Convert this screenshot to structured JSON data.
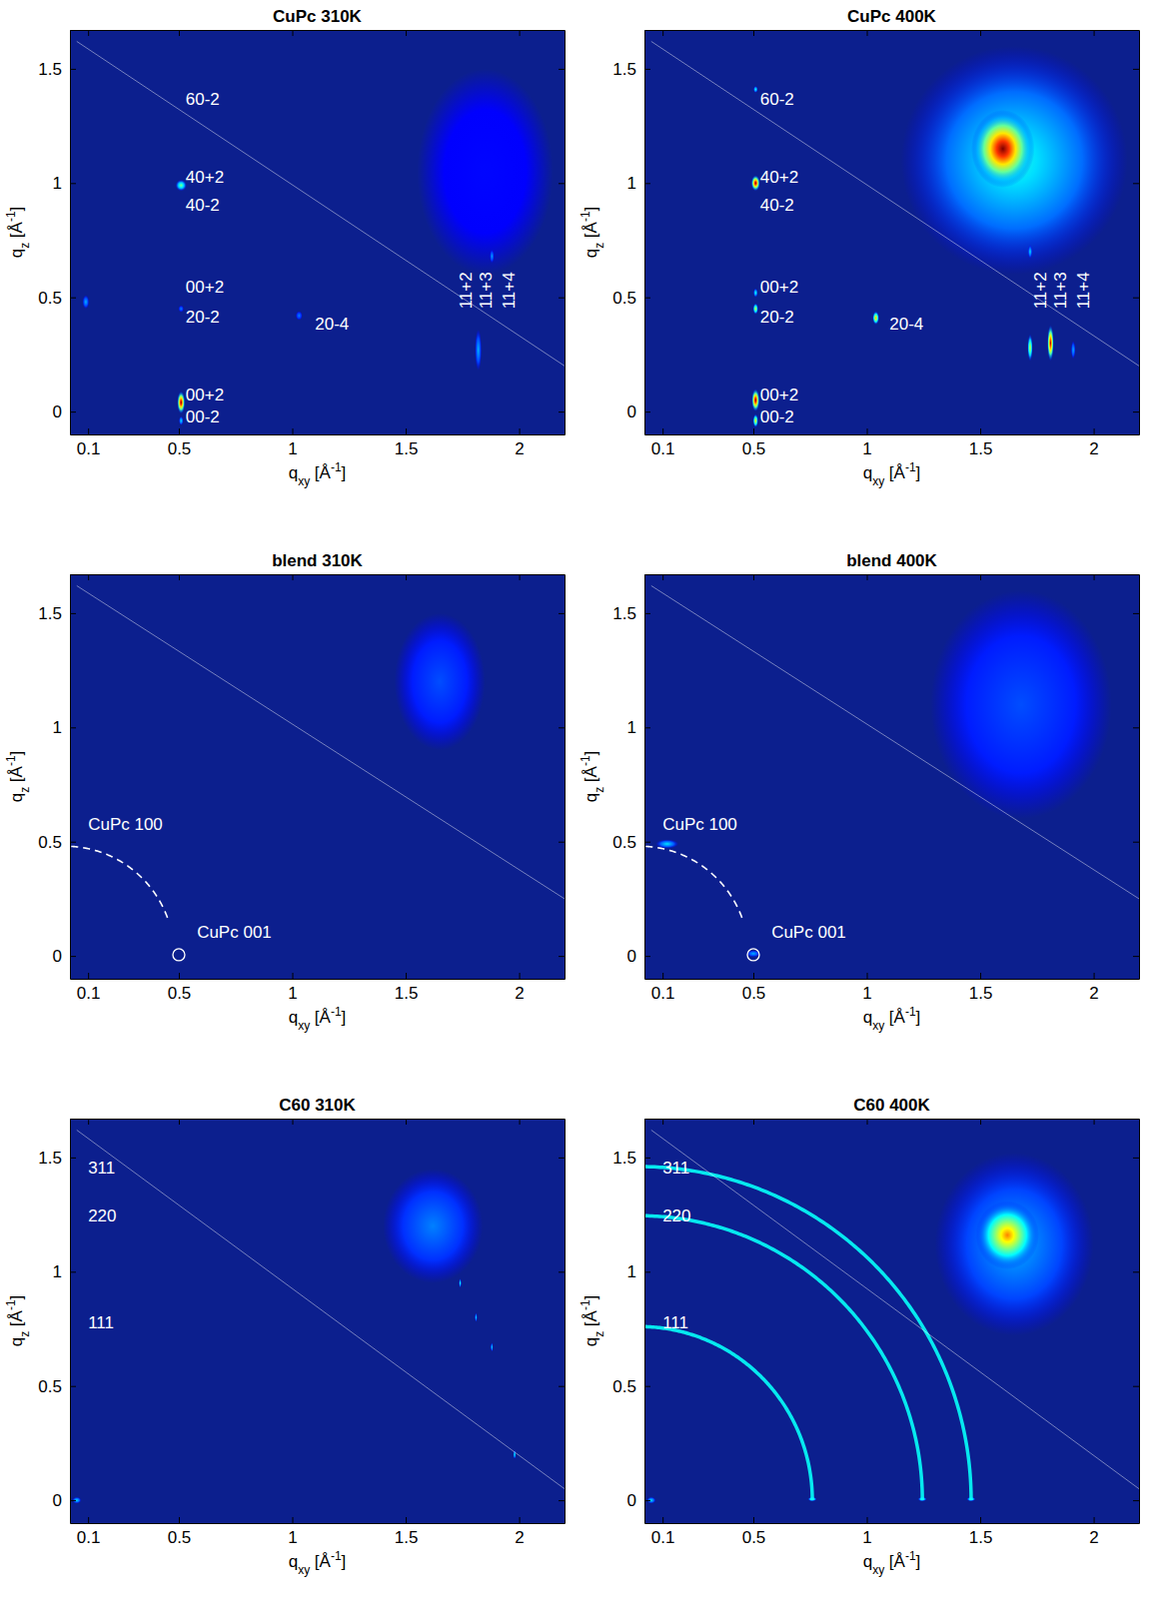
{
  "chart_data": [
    {
      "type": "scattering_map",
      "title": "CuPc 310K",
      "xlabel": [
        "q",
        "xy",
        " [Å",
        "-1",
        "]"
      ],
      "ylabel": [
        "q",
        "z",
        " [Å",
        "-1",
        "]"
      ],
      "xlim": [
        0.02,
        2.2
      ],
      "ylim": [
        -0.1,
        1.67
      ],
      "xticks": [
        0.1,
        0.5,
        1,
        1.5,
        2
      ],
      "yticks": [
        0,
        0.5,
        1,
        1.5
      ],
      "spots": {
        "x": [
          1.85,
          0.51,
          0.51,
          0.51,
          0.51,
          0.09,
          1.03,
          1.82,
          1.88
        ],
        "y": [
          1.05,
          0.04,
          -0.04,
          0.99,
          0.45,
          0.48,
          0.42,
          0.27,
          0.68
        ],
        "intensity": [
          0.13,
          1.0,
          0.35,
          0.5,
          0.25,
          0.3,
          0.25,
          0.3,
          0.28
        ],
        "sx": [
          0.3,
          0.018,
          0.01,
          0.025,
          0.012,
          0.015,
          0.015,
          0.015,
          0.01
        ],
        "sy": [
          0.45,
          0.05,
          0.02,
          0.025,
          0.015,
          0.03,
          0.02,
          0.09,
          0.03
        ]
      },
      "guide_line": {
        "x": [
          0.05,
          2.2
        ],
        "y": [
          1.62,
          0.2
        ]
      },
      "annotations": {
        "text": [
          "60-2",
          "40+2",
          "40-2",
          "00+2",
          "20-2",
          "20-4",
          "00+2",
          "00-2"
        ],
        "x": [
          0.53,
          0.53,
          0.53,
          0.53,
          0.53,
          1.1,
          0.53,
          0.53
        ],
        "y": [
          1.36,
          1.02,
          0.9,
          0.54,
          0.41,
          0.38,
          0.07,
          -0.03
        ]
      },
      "vertical_annotations": {
        "text": [
          "11+2",
          "11+3",
          "11+4"
        ],
        "x": [
          1.77,
          1.86,
          1.96
        ],
        "y": [
          0.53,
          0.53,
          0.53
        ]
      }
    },
    {
      "type": "scattering_map",
      "title": "CuPc 400K",
      "xlabel": [
        "q",
        "xy",
        " [Å",
        "-1",
        "]"
      ],
      "ylabel": [
        "q",
        "z",
        " [Å",
        "-1",
        "]"
      ],
      "xlim": [
        0.02,
        2.2
      ],
      "ylim": [
        -0.1,
        1.67
      ],
      "xticks": [
        0.1,
        0.5,
        1,
        1.5,
        2
      ],
      "yticks": [
        0,
        0.5,
        1,
        1.5
      ],
      "spots": {
        "x": [
          1.65,
          1.6,
          0.51,
          0.51,
          0.51,
          0.51,
          0.51,
          0.51,
          1.04,
          1.72,
          1.81,
          1.91,
          1.72
        ],
        "y": [
          1.1,
          1.15,
          0.05,
          -0.04,
          1.0,
          1.41,
          0.52,
          0.45,
          0.41,
          0.28,
          0.3,
          0.27,
          0.7
        ],
        "intensity": [
          0.4,
          1.0,
          1.0,
          0.65,
          1.0,
          0.4,
          0.4,
          0.6,
          0.7,
          0.6,
          0.95,
          0.3,
          0.35
        ],
        "sx": [
          0.5,
          0.14,
          0.018,
          0.012,
          0.02,
          0.01,
          0.01,
          0.012,
          0.015,
          0.012,
          0.015,
          0.01,
          0.01
        ],
        "sy": [
          0.5,
          0.17,
          0.05,
          0.03,
          0.035,
          0.015,
          0.02,
          0.025,
          0.03,
          0.06,
          0.08,
          0.04,
          0.03
        ]
      },
      "guide_line": {
        "x": [
          0.05,
          2.2
        ],
        "y": [
          1.62,
          0.2
        ]
      },
      "annotations": {
        "text": [
          "60-2",
          "40+2",
          "40-2",
          "00+2",
          "20-2",
          "20-4",
          "00+2",
          "00-2"
        ],
        "x": [
          0.53,
          0.53,
          0.53,
          0.53,
          0.53,
          1.1,
          0.53,
          0.53
        ],
        "y": [
          1.36,
          1.02,
          0.9,
          0.54,
          0.41,
          0.38,
          0.07,
          -0.03
        ]
      },
      "vertical_annotations": {
        "text": [
          "11+2",
          "11+3",
          "11+4"
        ],
        "x": [
          1.77,
          1.86,
          1.96
        ],
        "y": [
          0.53,
          0.53,
          0.53
        ]
      }
    },
    {
      "type": "scattering_map",
      "title": "blend 310K",
      "xlabel": [
        "q",
        "xy",
        " [Å",
        "-1",
        "]"
      ],
      "ylabel": [
        "q",
        "z",
        " [Å",
        "-1",
        "]"
      ],
      "xlim": [
        0.02,
        2.2
      ],
      "ylim": [
        -0.1,
        1.67
      ],
      "xticks": [
        0.1,
        0.5,
        1,
        1.5,
        2
      ],
      "yticks": [
        0,
        0.5,
        1,
        1.5
      ],
      "spots": {
        "x": [
          1.65
        ],
        "y": [
          1.2
        ],
        "intensity": [
          0.2
        ],
        "sx": [
          0.2
        ],
        "sy": [
          0.3
        ]
      },
      "guide_line": {
        "x": [
          0.05,
          2.2
        ],
        "y": [
          1.62,
          0.25
        ]
      },
      "arcs": {
        "radius": [
          0.48
        ],
        "x_end": [
          0.45
        ],
        "line_style": "dashed"
      },
      "markers": {
        "x": [
          0.5
        ],
        "y": [
          0.005
        ],
        "marker": "circle"
      },
      "annotations": {
        "text": [
          "CuPc 100",
          "CuPc 001"
        ],
        "x": [
          0.1,
          0.58
        ],
        "y": [
          0.57,
          0.1
        ]
      }
    },
    {
      "type": "scattering_map",
      "title": "blend 400K",
      "xlabel": [
        "q",
        "xy",
        " [Å",
        "-1",
        "]"
      ],
      "ylabel": [
        "q",
        "z",
        " [Å",
        "-1",
        "]"
      ],
      "xlim": [
        0.02,
        2.2
      ],
      "ylim": [
        -0.1,
        1.67
      ],
      "xticks": [
        0.1,
        0.5,
        1,
        1.5,
        2
      ],
      "yticks": [
        0,
        0.5,
        1,
        1.5
      ],
      "spots": {
        "x": [
          1.68,
          0.12,
          0.5
        ],
        "y": [
          1.1,
          0.49,
          0.01
        ],
        "intensity": [
          0.2,
          0.35,
          0.3
        ],
        "sx": [
          0.4,
          0.05,
          0.03
        ],
        "sy": [
          0.5,
          0.02,
          0.015
        ]
      },
      "guide_line": {
        "x": [
          0.05,
          2.2
        ],
        "y": [
          1.62,
          0.25
        ]
      },
      "arcs": {
        "radius": [
          0.48
        ],
        "x_end": [
          0.45
        ],
        "line_style": "dashed"
      },
      "markers": {
        "x": [
          0.5
        ],
        "y": [
          0.005
        ],
        "marker": "circle"
      },
      "annotations": {
        "text": [
          "CuPc 100",
          "CuPc 001"
        ],
        "x": [
          0.1,
          0.58
        ],
        "y": [
          0.57,
          0.1
        ]
      }
    },
    {
      "type": "scattering_map",
      "title": "C60 310K",
      "xlabel": [
        "q",
        "xy",
        " [Å",
        "-1",
        "]"
      ],
      "ylabel": [
        "q",
        "z",
        " [Å",
        "-1",
        "]"
      ],
      "xlim": [
        0.02,
        2.2
      ],
      "ylim": [
        -0.1,
        1.67
      ],
      "xticks": [
        0.1,
        0.5,
        1,
        1.5,
        2
      ],
      "yticks": [
        0,
        0.5,
        1,
        1.5
      ],
      "spots": {
        "x": [
          1.62,
          1.74,
          1.81,
          1.88,
          1.98,
          0.05
        ],
        "y": [
          1.2,
          0.95,
          0.8,
          0.67,
          0.2,
          0.0
        ],
        "intensity": [
          0.25,
          0.4,
          0.35,
          0.35,
          0.4,
          0.35
        ],
        "sx": [
          0.22,
          0.006,
          0.006,
          0.006,
          0.006,
          0.02
        ],
        "sy": [
          0.25,
          0.02,
          0.02,
          0.02,
          0.02,
          0.015
        ]
      },
      "guide_line": {
        "x": [
          0.05,
          2.2
        ],
        "y": [
          1.62,
          0.05
        ]
      },
      "annotations": {
        "text": [
          "311",
          "220",
          "111"
        ],
        "x": [
          0.1,
          0.1,
          0.1
        ],
        "y": [
          1.45,
          1.24,
          0.77
        ]
      }
    },
    {
      "type": "scattering_map",
      "title": "C60 400K",
      "xlabel": [
        "q",
        "xy",
        " [Å",
        "-1",
        "]"
      ],
      "ylabel": [
        "q",
        "z",
        " [Å",
        "-1",
        "]"
      ],
      "xlim": [
        0.02,
        2.2
      ],
      "ylim": [
        -0.1,
        1.67
      ],
      "xticks": [
        0.1,
        0.5,
        1,
        1.5,
        2
      ],
      "yticks": [
        0,
        0.5,
        1,
        1.5
      ],
      "spots": {
        "x": [
          1.65,
          1.62,
          0.76,
          1.245,
          1.46,
          0.05
        ],
        "y": [
          1.12,
          1.16,
          0.005,
          0.005,
          0.005,
          0.0
        ],
        "intensity": [
          0.3,
          0.75,
          0.5,
          0.45,
          0.45,
          0.35
        ],
        "sx": [
          0.35,
          0.14,
          0.02,
          0.02,
          0.02,
          0.02
        ],
        "sy": [
          0.4,
          0.15,
          0.01,
          0.01,
          0.01,
          0.015
        ]
      },
      "rings": {
        "radius": [
          0.76,
          1.245,
          1.46
        ],
        "intensity": [
          0.38,
          0.38,
          0.38
        ]
      },
      "guide_line": {
        "x": [
          0.05,
          2.2
        ],
        "y": [
          1.62,
          0.05
        ]
      },
      "annotations": {
        "text": [
          "311",
          "220",
          "111"
        ],
        "x": [
          0.1,
          0.1,
          0.1
        ],
        "y": [
          1.45,
          1.24,
          0.77
        ]
      }
    }
  ]
}
